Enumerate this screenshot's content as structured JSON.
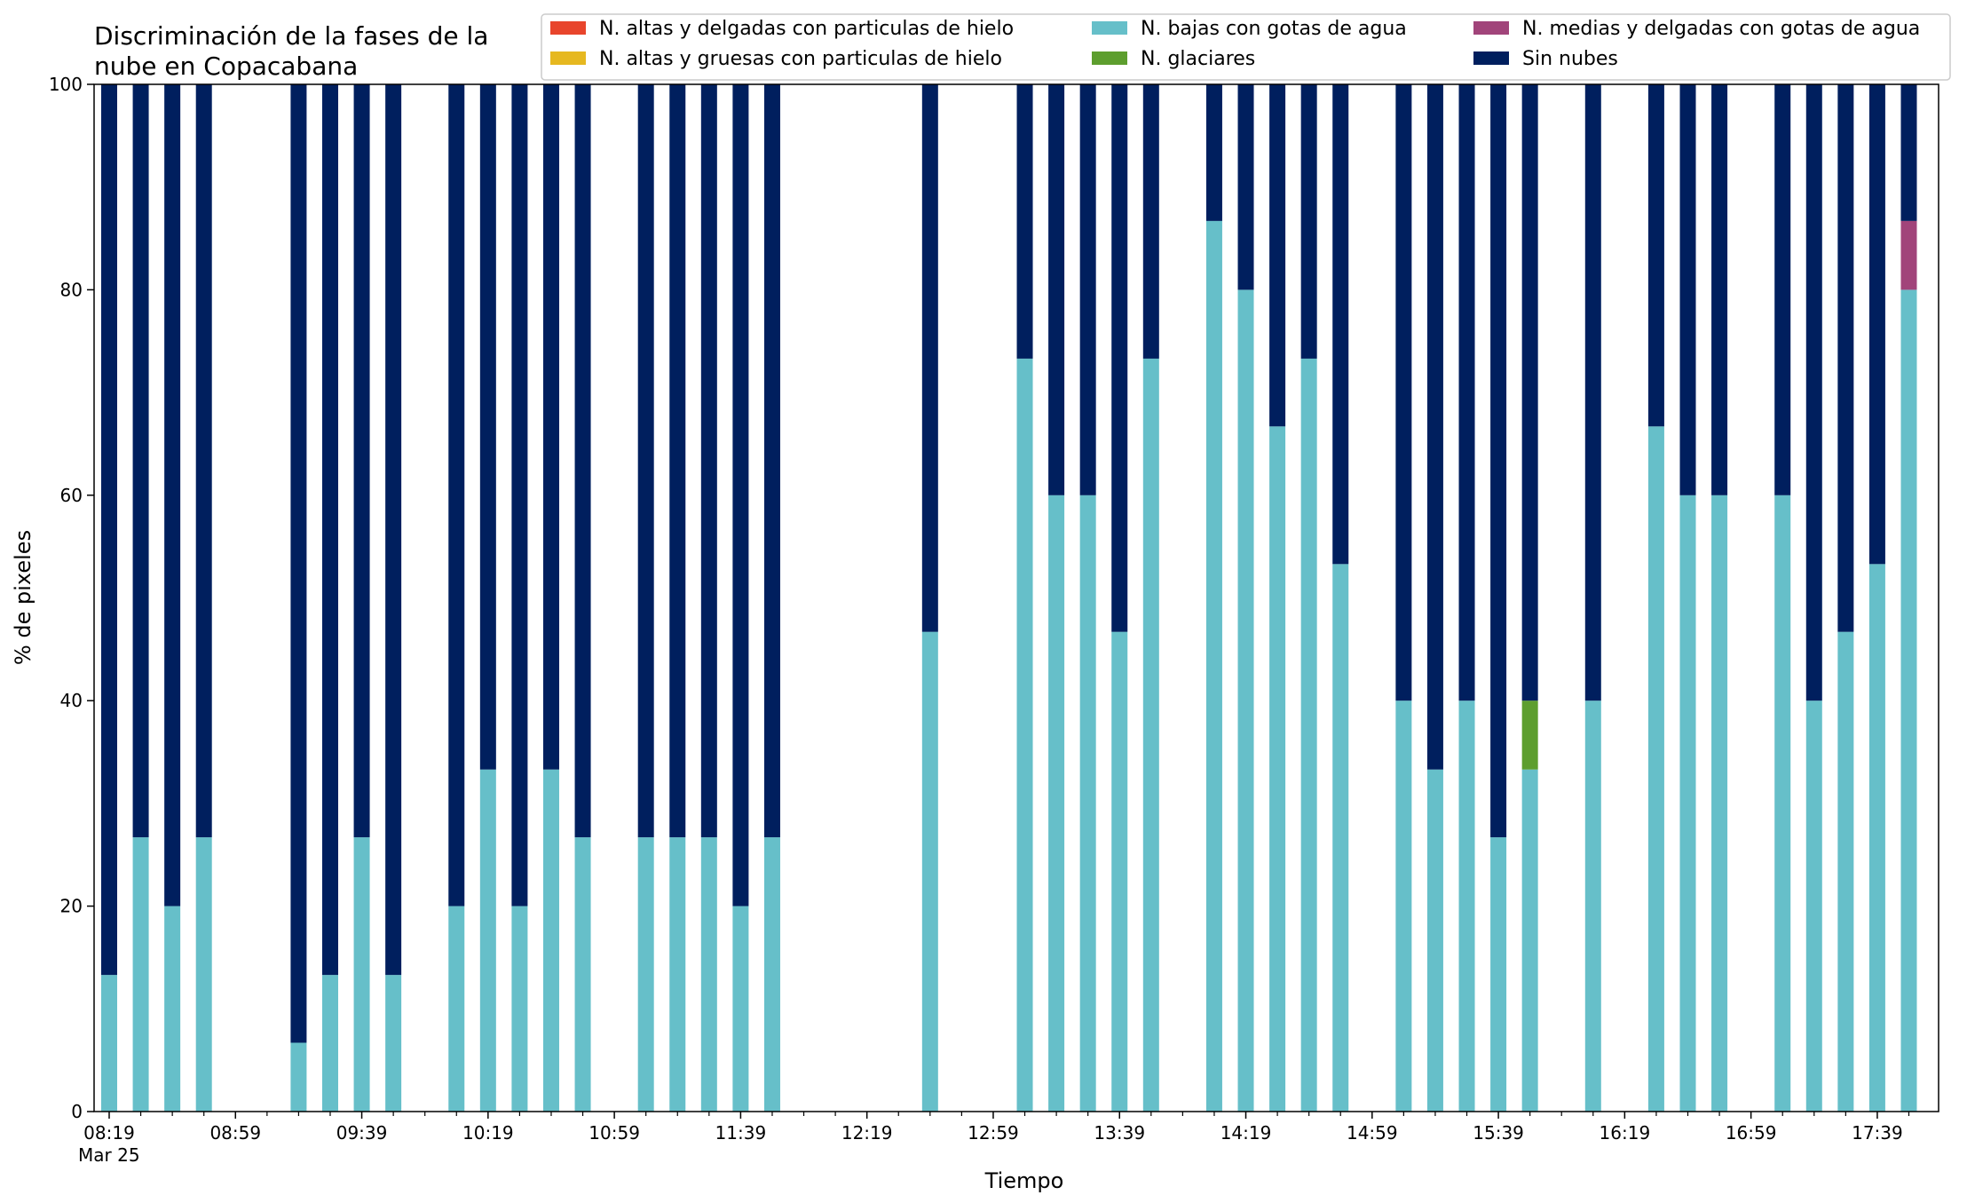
{
  "chart_data": {
    "type": "bar",
    "stacked": true,
    "title_lines": [
      "Discriminación de la fases de la",
      "nube en Copacabana"
    ],
    "xlabel": "Tiempo",
    "ylabel": "% de pixeles",
    "ylim": [
      0,
      100
    ],
    "yticks": [
      "0",
      "20",
      "40",
      "60",
      "80",
      "100"
    ],
    "xtick_labels": [
      "08:19",
      "08:59",
      "09:39",
      "10:19",
      "10:59",
      "11:39",
      "12:19",
      "12:59",
      "13:39",
      "14:19",
      "14:59",
      "15:39",
      "16:19",
      "16:59",
      "17:39"
    ],
    "xtick_sublabel": "Mar 25",
    "grid": false,
    "legend_position": "top-right",
    "interval_minutes": 10,
    "categories": [
      "08:19",
      "08:29",
      "08:39",
      "08:49",
      "08:59",
      "09:09",
      "09:19",
      "09:29",
      "09:39",
      "09:49",
      "09:59",
      "10:09",
      "10:19",
      "10:29",
      "10:39",
      "10:49",
      "10:59",
      "11:09",
      "11:19",
      "11:29",
      "11:39",
      "11:49",
      "11:59",
      "12:09",
      "12:19",
      "12:29",
      "12:39",
      "12:49",
      "12:59",
      "13:09",
      "13:19",
      "13:29",
      "13:39",
      "13:49",
      "13:59",
      "14:09",
      "14:19",
      "14:29",
      "14:39",
      "14:49",
      "14:59",
      "15:09",
      "15:19",
      "15:29",
      "15:39",
      "15:49",
      "15:59",
      "16:09",
      "16:19",
      "16:29",
      "16:39",
      "16:49",
      "16:59",
      "17:09",
      "17:19",
      "17:29",
      "17:39",
      "17:49"
    ],
    "series": [
      {
        "name": "N. altas y delgadas con particulas de hielo",
        "color": "#e8452c",
        "values": [
          0,
          0,
          0,
          0,
          null,
          null,
          0,
          0,
          0,
          0,
          null,
          0,
          0,
          0,
          0,
          0,
          null,
          0,
          0,
          0,
          0,
          0,
          null,
          null,
          null,
          null,
          0,
          null,
          null,
          0,
          0,
          0,
          0,
          0,
          null,
          0,
          0,
          0,
          0,
          0,
          null,
          0,
          0,
          0,
          0,
          0,
          null,
          0,
          null,
          0,
          0,
          0,
          null,
          0,
          0,
          0,
          0,
          0
        ]
      },
      {
        "name": "N. altas y gruesas con particulas de hielo",
        "color": "#e6b820",
        "values": [
          0,
          0,
          0,
          0,
          null,
          null,
          0,
          0,
          0,
          0,
          null,
          0,
          0,
          0,
          0,
          0,
          null,
          0,
          0,
          0,
          0,
          0,
          null,
          null,
          null,
          null,
          0,
          null,
          null,
          0,
          0,
          0,
          0,
          0,
          null,
          0,
          0,
          0,
          0,
          0,
          null,
          0,
          0,
          0,
          0,
          0,
          null,
          0,
          null,
          0,
          0,
          0,
          null,
          0,
          0,
          0,
          0,
          0
        ]
      },
      {
        "name": "N. bajas con gotas de agua",
        "color": "#66bfc9",
        "values": [
          13.3,
          26.7,
          20,
          26.7,
          null,
          null,
          6.7,
          13.3,
          26.7,
          13.3,
          null,
          20,
          33.3,
          20,
          33.3,
          26.7,
          null,
          26.7,
          26.7,
          26.7,
          20,
          26.7,
          null,
          null,
          null,
          null,
          46.7,
          null,
          null,
          73.3,
          60,
          60,
          46.7,
          73.3,
          null,
          86.7,
          80,
          66.7,
          73.3,
          53.3,
          null,
          40,
          33.3,
          40,
          26.7,
          33.3,
          null,
          40,
          null,
          66.7,
          60,
          60,
          null,
          60,
          40,
          46.7,
          53.3,
          80
        ]
      },
      {
        "name": "N. glaciares",
        "color": "#5d9e2e",
        "values": [
          0,
          0,
          0,
          0,
          null,
          null,
          0,
          0,
          0,
          0,
          null,
          0,
          0,
          0,
          0,
          0,
          null,
          0,
          0,
          0,
          0,
          0,
          null,
          null,
          null,
          null,
          0,
          null,
          null,
          0,
          0,
          0,
          0,
          0,
          null,
          0,
          0,
          0,
          0,
          0,
          null,
          0,
          0,
          0,
          0,
          6.7,
          null,
          0,
          null,
          0,
          0,
          0,
          null,
          0,
          0,
          0,
          0,
          0
        ]
      },
      {
        "name": "N. medias y delgadas con gotas de agua",
        "color": "#a1447a",
        "values": [
          0,
          0,
          0,
          0,
          null,
          null,
          0,
          0,
          0,
          0,
          null,
          0,
          0,
          0,
          0,
          0,
          null,
          0,
          0,
          0,
          0,
          0,
          null,
          null,
          null,
          null,
          0,
          null,
          null,
          0,
          0,
          0,
          0,
          0,
          null,
          0,
          0,
          0,
          0,
          0,
          null,
          0,
          0,
          0,
          0,
          0,
          null,
          0,
          null,
          0,
          0,
          0,
          null,
          0,
          0,
          0,
          0,
          6.7
        ]
      },
      {
        "name": "Sin nubes",
        "color": "#001f5e",
        "values": [
          86.7,
          73.3,
          80,
          73.3,
          null,
          null,
          93.3,
          86.7,
          73.3,
          86.7,
          null,
          80,
          66.7,
          80,
          66.7,
          73.3,
          null,
          73.3,
          73.3,
          73.3,
          80,
          73.3,
          null,
          null,
          null,
          null,
          53.3,
          null,
          null,
          26.7,
          40,
          40,
          53.3,
          26.7,
          null,
          13.3,
          20,
          33.3,
          26.7,
          46.7,
          null,
          60,
          66.7,
          60,
          73.3,
          60,
          null,
          60,
          null,
          33.3,
          40,
          40,
          null,
          40,
          60,
          53.3,
          46.7,
          13.3
        ]
      }
    ]
  }
}
